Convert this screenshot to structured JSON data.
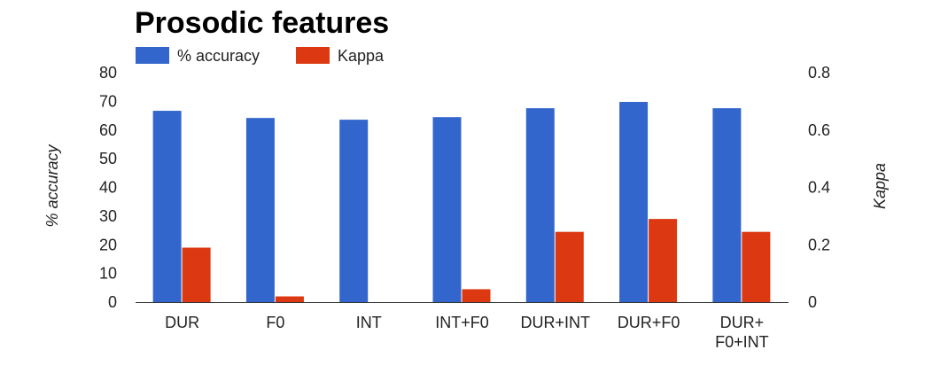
{
  "chart_data": {
    "type": "bar",
    "title": "Prosodic features",
    "categories": [
      [
        "DUR"
      ],
      [
        "F0"
      ],
      [
        "INT"
      ],
      [
        "INT+F0"
      ],
      [
        "DUR+INT"
      ],
      [
        "DUR+F0"
      ],
      [
        "DUR+",
        "F0+INT"
      ]
    ],
    "series": [
      {
        "name": "% accuracy",
        "axis": "left",
        "color": "#3366cc",
        "values": [
          66.7,
          64.2,
          63.6,
          64.5,
          67.6,
          69.8,
          67.6
        ]
      },
      {
        "name": "Kappa",
        "axis": "right",
        "color": "#dc3912",
        "values": [
          0.19,
          0.02,
          0.0,
          0.045,
          0.245,
          0.29,
          0.245
        ]
      }
    ],
    "ylabel": "% accuracy",
    "ylim": [
      0,
      80
    ],
    "yticks": [
      "0",
      "10",
      "20",
      "30",
      "40",
      "50",
      "60",
      "70",
      "80"
    ],
    "y2label": "Kappa",
    "y2lim": [
      0,
      0.8
    ],
    "y2ticks": [
      "0",
      "0.2",
      "0.4",
      "0.6",
      "0.8"
    ],
    "legend_position": "top-left",
    "grid": false
  }
}
